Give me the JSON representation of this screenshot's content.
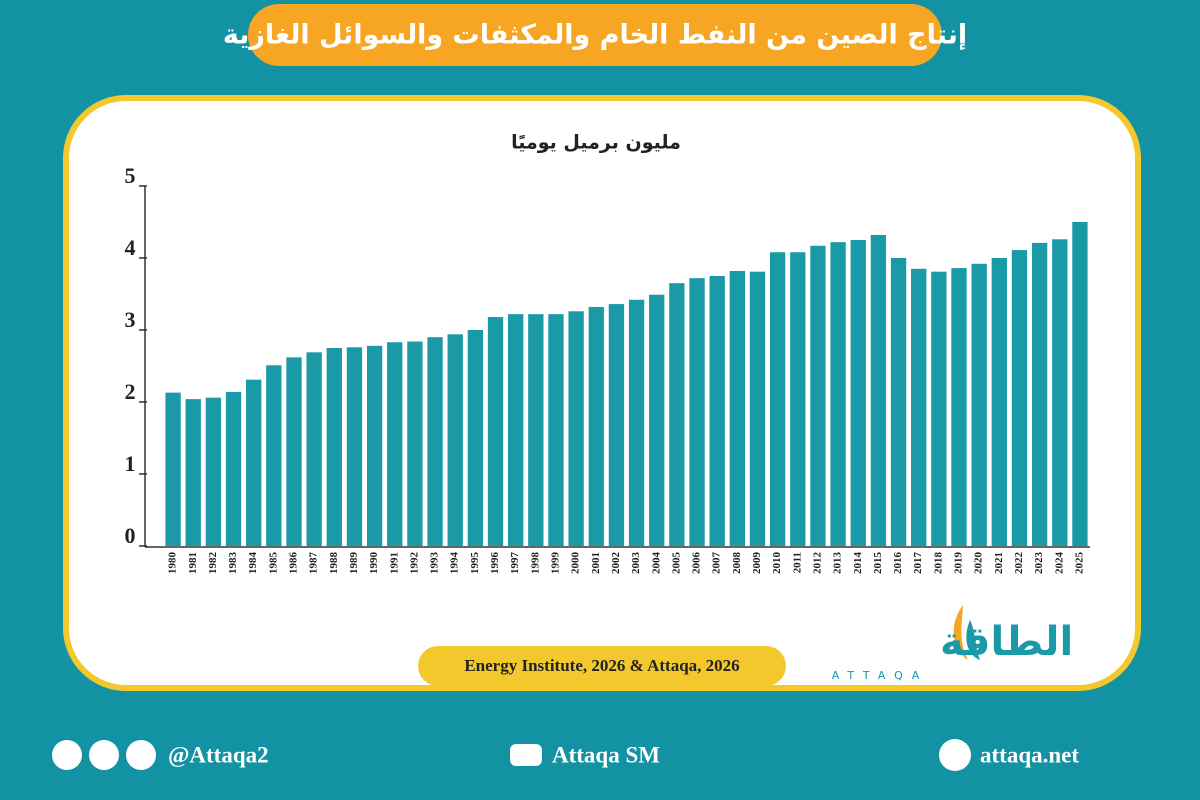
{
  "header": {
    "title": "إنتاج الصين من النفط الخام والمكثفات والسوائل الغازية"
  },
  "chart_data": {
    "type": "bar",
    "subtitle": "مليون برميل يوميًا",
    "color": "#1a9aa7",
    "categories": [
      "1980",
      "1981",
      "1982",
      "1983",
      "1984",
      "1985",
      "1986",
      "1987",
      "1988",
      "1989",
      "1990",
      "1991",
      "1992",
      "1993",
      "1994",
      "1995",
      "1996",
      "1997",
      "1998",
      "1999",
      "2000",
      "2001",
      "2002",
      "2003",
      "2004",
      "2005",
      "2006",
      "2007",
      "2008",
      "2009",
      "2010",
      "2011",
      "2012",
      "2013",
      "2014",
      "2015",
      "2016",
      "2017",
      "2018",
      "2019",
      "2020",
      "2021",
      "2022",
      "2023",
      "2024",
      "2025"
    ],
    "values": [
      2.13,
      2.04,
      2.06,
      2.14,
      2.31,
      2.51,
      2.62,
      2.69,
      2.75,
      2.76,
      2.78,
      2.83,
      2.84,
      2.9,
      2.94,
      3.0,
      3.18,
      3.22,
      3.22,
      3.22,
      3.26,
      3.32,
      3.36,
      3.42,
      3.49,
      3.65,
      3.72,
      3.75,
      3.82,
      3.81,
      4.08,
      4.08,
      4.17,
      4.22,
      4.25,
      4.32,
      4.0,
      3.85,
      3.81,
      3.86,
      3.92,
      4.0,
      4.11,
      4.21,
      4.26,
      4.5
    ],
    "ylim": [
      0,
      5
    ],
    "yticks": [
      0,
      1,
      2,
      3,
      4,
      5
    ]
  },
  "source": "Energy Institute, 2026 & Attaqa, 2026",
  "logo": {
    "name": "الطاقة",
    "latin": "ATTAQA"
  },
  "footer": {
    "social": "@Attaqa2",
    "youtube": "Attaqa SM",
    "website": "attaqa.net"
  }
}
